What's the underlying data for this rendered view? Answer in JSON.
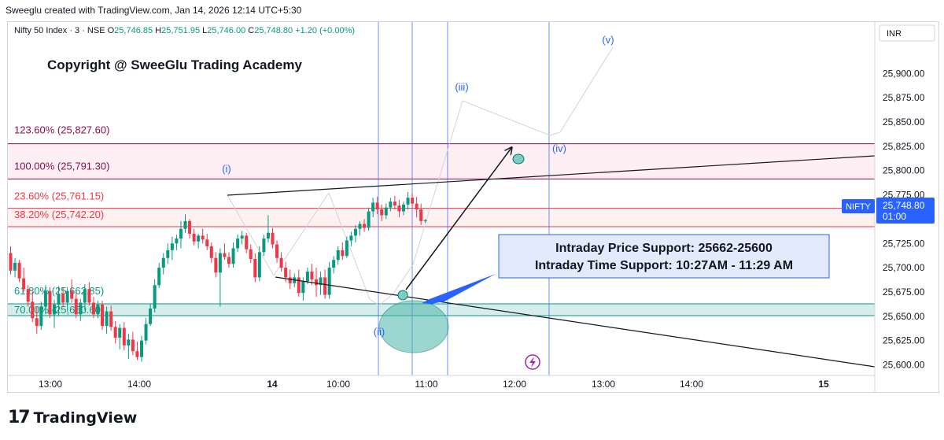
{
  "header": {
    "credit": "Sweeglu created with TradingView.com, Jan 14, 2026 12:14 UTC+5:30"
  },
  "legend": {
    "symbol": "Nifty 50 Index · 3 · NSE",
    "o_label": "O",
    "o_value": "25,746.85",
    "h_label": "H",
    "h_value": "25,751.95",
    "l_label": "L",
    "l_value": "25,746.00",
    "c_label": "C",
    "c_value": "25,748.80",
    "change": "+1.20 (+0.00%)"
  },
  "currency": "INR",
  "copyright": "Copyright @ SweeGlu Trading Academy",
  "fib_levels": [
    {
      "label": "123.60% (25,827.60)",
      "price": 25827.6,
      "color": "#880e4f"
    },
    {
      "label": "100.00% (25,791.30)",
      "price": 25791.3,
      "color": "#880e4f"
    },
    {
      "label": "23.60% (25,761.15)",
      "price": 25761.15,
      "color": "#f23645"
    },
    {
      "label": "38.20% (25,742.20)",
      "price": 25742.2,
      "color": "#f23645"
    },
    {
      "label": "61.80% (25,662.85)",
      "price": 25662.85,
      "color": "#089981"
    },
    {
      "label": "70.00% (25,650.60)",
      "price": 25650.6,
      "color": "#089981"
    }
  ],
  "waves": [
    {
      "label": "(i)"
    },
    {
      "label": "(ii)"
    },
    {
      "label": "(iii)"
    },
    {
      "label": "(iv)"
    },
    {
      "label": "(v)"
    }
  ],
  "info_box": {
    "line1": "Intraday Price Support: 25662-25600",
    "line2": "Intraday Time Support: 10:27AM - 11:29 AM"
  },
  "price_tag": {
    "symbol": "NIFTY",
    "price": "25,748.80",
    "countdown": "01:00"
  },
  "colors": {
    "up": "#089981",
    "down": "#f23645",
    "wave": "#2962ff",
    "fib_upper": "#880e4f",
    "fib_lower": "#f23645",
    "fib_green": "#089981"
  },
  "chart_data": {
    "type": "candlestick",
    "title": "Nifty 50 Index · 3 · NSE",
    "y_axis": {
      "ticks": [
        25600,
        25625,
        25650,
        25675,
        25700,
        25725,
        25750,
        25775,
        25800,
        25825,
        25850,
        25875,
        25900
      ],
      "tick_labels": [
        "25,600.00",
        "25,625.00",
        "25,650.00",
        "25,675.00",
        "25,700.00",
        "25,725.00",
        "25,750.00",
        "25,775.00",
        "25,800.00",
        "25,825.00",
        "25,850.00",
        "25,875.00",
        "25,900.00"
      ],
      "ylim": [
        25592,
        25910
      ]
    },
    "x_axis": {
      "ticks": [
        {
          "label": "13:00",
          "bar": 10
        },
        {
          "label": "14:00",
          "bar": 30
        },
        {
          "label": "14",
          "bar": 67
        },
        {
          "label": "10:00",
          "bar": 82
        },
        {
          "label": "11:00",
          "bar": 102
        },
        {
          "label": "12:00",
          "bar": 122
        },
        {
          "label": "13:00",
          "bar": 142
        },
        {
          "label": "14:00",
          "bar": 162
        },
        {
          "label": "15",
          "bar": 196
        }
      ]
    },
    "ohlc": [
      [
        25715,
        25722,
        25693,
        25697
      ],
      [
        25697,
        25710,
        25690,
        25705
      ],
      [
        25705,
        25708,
        25685,
        25689
      ],
      [
        25689,
        25700,
        25675,
        25678
      ],
      [
        25678,
        25682,
        25660,
        25665
      ],
      [
        25665,
        25675,
        25644,
        25648
      ],
      [
        25648,
        25660,
        25632,
        25640
      ],
      [
        25640,
        25665,
        25636,
        25660
      ],
      [
        25660,
        25682,
        25652,
        25676
      ],
      [
        25676,
        25680,
        25648,
        25652
      ],
      [
        25652,
        25667,
        25638,
        25662
      ],
      [
        25662,
        25681,
        25650,
        25673
      ],
      [
        25673,
        25680,
        25660,
        25664
      ],
      [
        25664,
        25680,
        25655,
        25676
      ],
      [
        25676,
        25688,
        25664,
        25668
      ],
      [
        25668,
        25676,
        25648,
        25652
      ],
      [
        25652,
        25668,
        25645,
        25664
      ],
      [
        25664,
        25683,
        25656,
        25678
      ],
      [
        25678,
        25685,
        25661,
        25664
      ],
      [
        25664,
        25670,
        25648,
        25652
      ],
      [
        25652,
        25666,
        25648,
        25662
      ],
      [
        25662,
        25666,
        25636,
        25640
      ],
      [
        25640,
        25660,
        25632,
        25655
      ],
      [
        25655,
        25661,
        25635,
        25639
      ],
      [
        25639,
        25645,
        25622,
        25628
      ],
      [
        25628,
        25642,
        25616,
        25638
      ],
      [
        25638,
        25644,
        25615,
        25620
      ],
      [
        25620,
        25632,
        25606,
        25626
      ],
      [
        25626,
        25634,
        25610,
        25614
      ],
      [
        25614,
        25624,
        25605,
        25608
      ],
      [
        25608,
        25630,
        25603,
        25625
      ],
      [
        25625,
        25648,
        25621,
        25642
      ],
      [
        25642,
        25663,
        25640,
        25658
      ],
      [
        25658,
        25688,
        25654,
        25682
      ],
      [
        25682,
        25705,
        25679,
        25700
      ],
      [
        25700,
        25715,
        25693,
        25710
      ],
      [
        25710,
        25725,
        25704,
        25718
      ],
      [
        25718,
        25732,
        25708,
        25725
      ],
      [
        25725,
        25734,
        25718,
        25730
      ],
      [
        25730,
        25748,
        25720,
        25740
      ],
      [
        25740,
        25755,
        25736,
        25748
      ],
      [
        25748,
        25750,
        25730,
        25735
      ],
      [
        25735,
        25740,
        25723,
        25727
      ],
      [
        25727,
        25735,
        25720,
        25733
      ],
      [
        25733,
        25740,
        25725,
        25729
      ],
      [
        25729,
        25735,
        25718,
        25722
      ],
      [
        25722,
        25726,
        25705,
        25710
      ],
      [
        25710,
        25716,
        25690,
        25695
      ],
      [
        25695,
        25720,
        25660,
        25715
      ],
      [
        25715,
        25725,
        25708,
        25711
      ],
      [
        25711,
        25716,
        25700,
        25704
      ],
      [
        25704,
        25726,
        25700,
        25720
      ],
      [
        25720,
        25734,
        25716,
        25730
      ],
      [
        25730,
        25738,
        25724,
        25733
      ],
      [
        25733,
        25736,
        25715,
        25719
      ],
      [
        25719,
        25724,
        25705,
        25709
      ],
      [
        25709,
        25715,
        25685,
        25690
      ],
      [
        25690,
        25722,
        25686,
        25716
      ],
      [
        25716,
        25734,
        25712,
        25730
      ],
      [
        25730,
        25754,
        25726,
        25736
      ],
      [
        25736,
        25741,
        25720,
        25724
      ],
      [
        25724,
        25728,
        25705,
        25710
      ],
      [
        25710,
        25716,
        25696,
        25700
      ],
      [
        25700,
        25706,
        25685,
        25690
      ],
      [
        25690,
        25698,
        25678,
        25684
      ],
      [
        25684,
        25694,
        25680,
        25690
      ],
      [
        25690,
        25698,
        25670,
        25674
      ],
      [
        25674,
        25690,
        25666,
        25686
      ],
      [
        25686,
        25700,
        25683,
        25696
      ],
      [
        25696,
        25704,
        25682,
        25688
      ],
      [
        25688,
        25700,
        25670,
        25682
      ],
      [
        25682,
        25696,
        25672,
        25690
      ],
      [
        25690,
        25698,
        25668,
        25672
      ],
      [
        25672,
        25706,
        25668,
        25700
      ],
      [
        25700,
        25712,
        25694,
        25708
      ],
      [
        25708,
        25722,
        25703,
        25718
      ],
      [
        25718,
        25726,
        25708,
        25712
      ],
      [
        25712,
        25732,
        25710,
        25728
      ],
      [
        25728,
        25737,
        25722,
        25733
      ],
      [
        25733,
        25744,
        25726,
        25740
      ],
      [
        25740,
        25748,
        25733,
        25745
      ],
      [
        25745,
        25750,
        25737,
        25741
      ],
      [
        25741,
        25762,
        25738,
        25758
      ],
      [
        25758,
        25772,
        25752,
        25767
      ],
      [
        25767,
        25773,
        25755,
        25760
      ],
      [
        25760,
        25765,
        25748,
        25754
      ],
      [
        25754,
        25766,
        25750,
        25762
      ],
      [
        25762,
        25772,
        25758,
        25768
      ],
      [
        25768,
        25774,
        25760,
        25764
      ],
      [
        25764,
        25770,
        25752,
        25758
      ],
      [
        25758,
        25768,
        25754,
        25765
      ],
      [
        25765,
        25778,
        25760,
        25772
      ],
      [
        25772,
        25777,
        25762,
        25766
      ],
      [
        25766,
        25773,
        25752,
        25760
      ],
      [
        25760,
        25766,
        25744,
        25748
      ],
      [
        25748,
        25750,
        25746,
        25749
      ]
    ]
  }
}
